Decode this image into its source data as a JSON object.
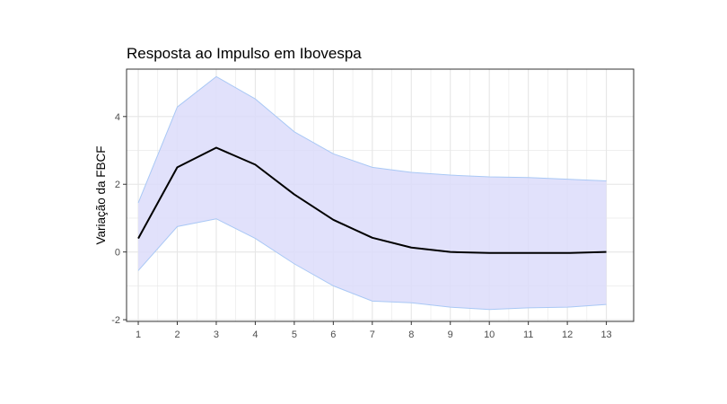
{
  "chart_data": {
    "type": "line",
    "title": "Resposta ao Impulso em Ibovespa",
    "xlabel": "",
    "ylabel": "Variação da FBCF",
    "x": [
      1,
      2,
      3,
      4,
      5,
      6,
      7,
      8,
      9,
      10,
      11,
      12,
      13
    ],
    "xlim": [
      0.7,
      13.7
    ],
    "ylim": [
      -2.05,
      5.4
    ],
    "x_ticks": [
      "1",
      "2",
      "3",
      "4",
      "5",
      "6",
      "7",
      "8",
      "9",
      "10",
      "11",
      "12",
      "13"
    ],
    "y_ticks": [
      -2,
      0,
      2,
      4
    ],
    "y_tick_labels": [
      "-2",
      "0",
      "2",
      "4"
    ],
    "grid": true,
    "series": [
      {
        "values": [
          0.4,
          2.5,
          3.08,
          2.58,
          1.7,
          0.95,
          0.42,
          0.13,
          0.0,
          -0.03,
          -0.03,
          -0.03,
          0.0
        ]
      },
      {
        "values": [
          -0.55,
          0.75,
          0.98,
          0.4,
          -0.35,
          -1.0,
          -1.45,
          -1.5,
          -1.63,
          -1.7,
          -1.65,
          -1.63,
          -1.55
        ]
      },
      {
        "values": [
          1.45,
          4.28,
          5.18,
          4.52,
          3.55,
          2.9,
          2.5,
          2.35,
          2.27,
          2.22,
          2.2,
          2.15,
          2.1
        ]
      }
    ],
    "colors": {
      "line": "#000000",
      "band_fill": "#dcdcfa",
      "band_edge": "#a9c8f5",
      "grid": "#e6e6e6",
      "panel_border": "#333333"
    }
  }
}
